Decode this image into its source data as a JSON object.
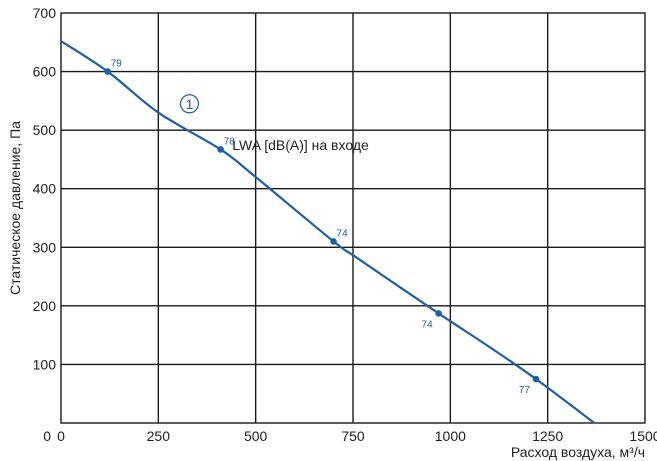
{
  "colors": {
    "curve": "#1f5fa8",
    "grid": "#1a1a1a",
    "text": "#222222",
    "background": "#ffffff"
  },
  "chart_data": {
    "type": "line",
    "xlabel": "Расход воздуха, м³/ч",
    "ylabel": "Статическое давление, Па",
    "xlim": [
      0,
      1500
    ],
    "ylim": [
      0,
      700
    ],
    "x_ticks": [
      0,
      250,
      500,
      750,
      1000,
      1250,
      1500
    ],
    "y_ticks": [
      100,
      200,
      300,
      400,
      500,
      600,
      700
    ],
    "x_tick_labels": [
      "0",
      "250",
      "500",
      "750",
      "1000",
      "1250",
      "1500"
    ],
    "y_tick_labels": [
      "100",
      "200",
      "300",
      "400",
      "500",
      "600",
      "700"
    ],
    "grid": true,
    "series": [
      {
        "curve_label": "1",
        "x": [
          0,
          120,
          250,
          410,
          500,
          700,
          760,
          970,
          1100,
          1220,
          1370
        ],
        "y": [
          652,
          600,
          530,
          467,
          420,
          310,
          282,
          187,
          130,
          75,
          0
        ]
      }
    ],
    "point_annotations": [
      {
        "x": 120,
        "y": 600,
        "label": "79",
        "label_pos": "above-right"
      },
      {
        "x": 410,
        "y": 467,
        "label": "78",
        "label_pos": "above-right"
      },
      {
        "x": 700,
        "y": 310,
        "label": "74",
        "label_pos": "above-right"
      },
      {
        "x": 970,
        "y": 187,
        "label": "74",
        "label_pos": "below-left"
      },
      {
        "x": 1220,
        "y": 75,
        "label": "77",
        "label_pos": "below-left"
      }
    ],
    "annotation": {
      "text": "LWA [dB(A)] на входе",
      "x": 440,
      "y": 475
    },
    "curve_marker": {
      "text": "1",
      "x": 330,
      "y": 545
    }
  }
}
